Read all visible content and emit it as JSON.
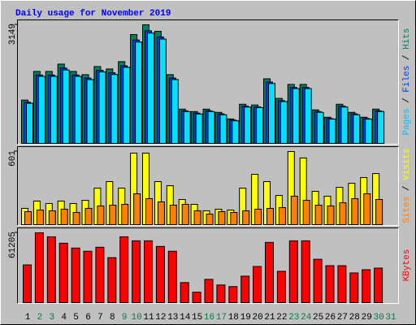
{
  "legend_separator": " / ",
  "categories": [
    "1",
    "2",
    "3",
    "4",
    "5",
    "6",
    "7",
    "8",
    "9",
    "10",
    "11",
    "12",
    "13",
    "14",
    "15",
    "16",
    "17",
    "18",
    "19",
    "20",
    "21",
    "22",
    "23",
    "24",
    "25",
    "26",
    "27",
    "28",
    "29",
    "30",
    "31"
  ],
  "highlighted_categories": [
    "2",
    "3",
    "9",
    "10",
    "16",
    "17",
    "23",
    "24",
    "30",
    "31"
  ],
  "highlight_color": "#008040",
  "chart_data": [
    {
      "type": "bar",
      "title": "Daily usage for November 2019",
      "ylim": [
        0,
        3149
      ],
      "yticks": [
        3149
      ],
      "grid": false,
      "series": [
        {
          "name": "Hits",
          "color": "#00805c",
          "values": [
            1150,
            1910,
            1910,
            2105,
            1910,
            1825,
            2040,
            1975,
            2170,
            2890,
            3149,
            2975,
            1825,
            910,
            845,
            910,
            825,
            650,
            1040,
            1020,
            1715,
            1195,
            1565,
            1565,
            890,
            695,
            1040,
            825,
            695,
            910,
            null
          ]
        },
        {
          "name": "Files",
          "color": "#0040ff",
          "values": [
            1095,
            1815,
            1815,
            2000,
            1815,
            1735,
            1940,
            1875,
            2060,
            2745,
            2990,
            2825,
            1735,
            865,
            805,
            865,
            785,
            620,
            990,
            970,
            1630,
            1135,
            1485,
            1485,
            845,
            660,
            990,
            785,
            660,
            865,
            null
          ]
        },
        {
          "name": "Pages",
          "color": "#00e0ff",
          "values": [
            1065,
            1780,
            1780,
            1950,
            1780,
            1695,
            1900,
            1830,
            2020,
            2690,
            2930,
            2770,
            1695,
            845,
            780,
            845,
            760,
            600,
            965,
            950,
            1590,
            1110,
            1455,
            1455,
            825,
            645,
            965,
            760,
            645,
            845,
            null
          ]
        }
      ]
    },
    {
      "type": "bar",
      "ylim": [
        0,
        601
      ],
      "yticks": [
        601
      ],
      "grid": false,
      "series": [
        {
          "name": "Visits",
          "color": "#ffff00",
          "values": [
            134,
            194,
            174,
            194,
            174,
            200,
            300,
            354,
            300,
            588,
            588,
            354,
            320,
            207,
            167,
            114,
            127,
            120,
            300,
            414,
            354,
            240,
            601,
            548,
            274,
            234,
            307,
            340,
            387,
            420,
            null
          ]
        },
        {
          "name": "Sites",
          "color": "#ff8000",
          "values": [
            107,
            120,
            114,
            127,
            100,
            134,
            154,
            160,
            167,
            254,
            214,
            187,
            160,
            167,
            114,
            87,
            107,
            100,
            114,
            127,
            134,
            140,
            234,
            200,
            160,
            154,
            180,
            214,
            254,
            207,
            null
          ]
        }
      ]
    },
    {
      "type": "bar",
      "ylim": [
        0,
        61205
      ],
      "yticks": [
        61205
      ],
      "grid": false,
      "series": [
        {
          "name": "KBytes",
          "color": "#ff0000",
          "values": [
            33065,
            61205,
            57690,
            52060,
            47840,
            45025,
            48540,
            39400,
            57690,
            54170,
            54170,
            49245,
            45025,
            17590,
            9145,
            20400,
            15480,
            14070,
            23215,
            31660,
            52765,
            27440,
            54170,
            54170,
            37990,
            32360,
            32360,
            26030,
            28845,
            30250,
            null
          ]
        }
      ]
    }
  ]
}
